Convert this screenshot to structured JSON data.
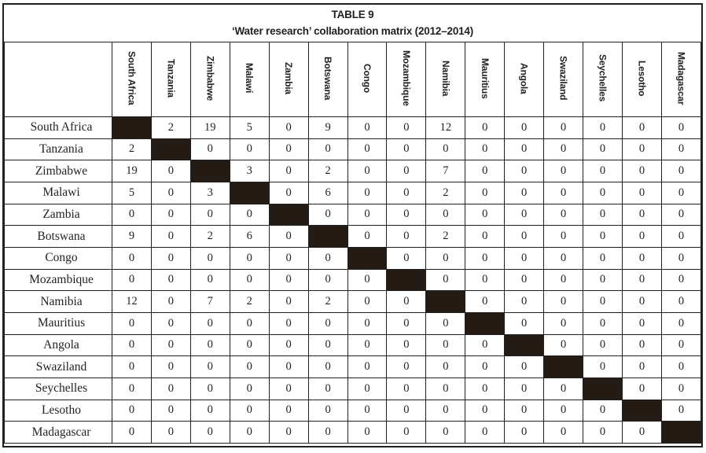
{
  "chart_data": {
    "type": "table",
    "title": "TABLE 9",
    "subtitle": "‘Water research’ collaboration matrix (2012–2014)",
    "columns": [
      "South Africa",
      "Tanzania",
      "Zimbabwe",
      "Malawi",
      "Zambia",
      "Botswana",
      "Congo",
      "Mozambique",
      "Namibia",
      "Mauritius",
      "Angola",
      "Swaziland",
      "Seychelles",
      "Lesotho",
      "Madagascar"
    ],
    "rows": [
      "South Africa",
      "Tanzania",
      "Zimbabwe",
      "Malawi",
      "Zambia",
      "Botswana",
      "Congo",
      "Mozambique",
      "Namibia",
      "Mauritius",
      "Angola",
      "Swaziland",
      "Seychelles",
      "Lesotho",
      "Madagascar"
    ],
    "matrix": [
      [
        null,
        2,
        19,
        5,
        0,
        9,
        0,
        0,
        12,
        0,
        0,
        0,
        0,
        0,
        0
      ],
      [
        2,
        null,
        0,
        0,
        0,
        0,
        0,
        0,
        0,
        0,
        0,
        0,
        0,
        0,
        0
      ],
      [
        19,
        0,
        null,
        3,
        0,
        2,
        0,
        0,
        7,
        0,
        0,
        0,
        0,
        0,
        0
      ],
      [
        5,
        0,
        3,
        null,
        0,
        6,
        0,
        0,
        2,
        0,
        0,
        0,
        0,
        0,
        0
      ],
      [
        0,
        0,
        0,
        0,
        null,
        0,
        0,
        0,
        0,
        0,
        0,
        0,
        0,
        0,
        0
      ],
      [
        9,
        0,
        2,
        6,
        0,
        null,
        0,
        0,
        2,
        0,
        0,
        0,
        0,
        0,
        0
      ],
      [
        0,
        0,
        0,
        0,
        0,
        0,
        null,
        0,
        0,
        0,
        0,
        0,
        0,
        0,
        0
      ],
      [
        0,
        0,
        0,
        0,
        0,
        0,
        0,
        null,
        0,
        0,
        0,
        0,
        0,
        0,
        0
      ],
      [
        12,
        0,
        7,
        2,
        0,
        2,
        0,
        0,
        null,
        0,
        0,
        0,
        0,
        0,
        0
      ],
      [
        0,
        0,
        0,
        0,
        0,
        0,
        0,
        0,
        0,
        null,
        0,
        0,
        0,
        0,
        0
      ],
      [
        0,
        0,
        0,
        0,
        0,
        0,
        0,
        0,
        0,
        0,
        null,
        0,
        0,
        0,
        0
      ],
      [
        0,
        0,
        0,
        0,
        0,
        0,
        0,
        0,
        0,
        0,
        0,
        null,
        0,
        0,
        0
      ],
      [
        0,
        0,
        0,
        0,
        0,
        0,
        0,
        0,
        0,
        0,
        0,
        0,
        null,
        0,
        0
      ],
      [
        0,
        0,
        0,
        0,
        0,
        0,
        0,
        0,
        0,
        0,
        0,
        0,
        0,
        null,
        0
      ],
      [
        0,
        0,
        0,
        0,
        0,
        0,
        0,
        0,
        0,
        0,
        0,
        0,
        0,
        0,
        null
      ]
    ],
    "diagonal_style": "solid black fill (self-pairing cells, no value)",
    "layout_hints": {
      "column_headers_orientation": "vertical, read top-to-bottom",
      "grid": "all cells bordered, thick outer border"
    }
  },
  "colors": {
    "diagonal_fill": "#241b15",
    "grid": "#231f20",
    "text": "#231f20",
    "background": "#ffffff"
  }
}
